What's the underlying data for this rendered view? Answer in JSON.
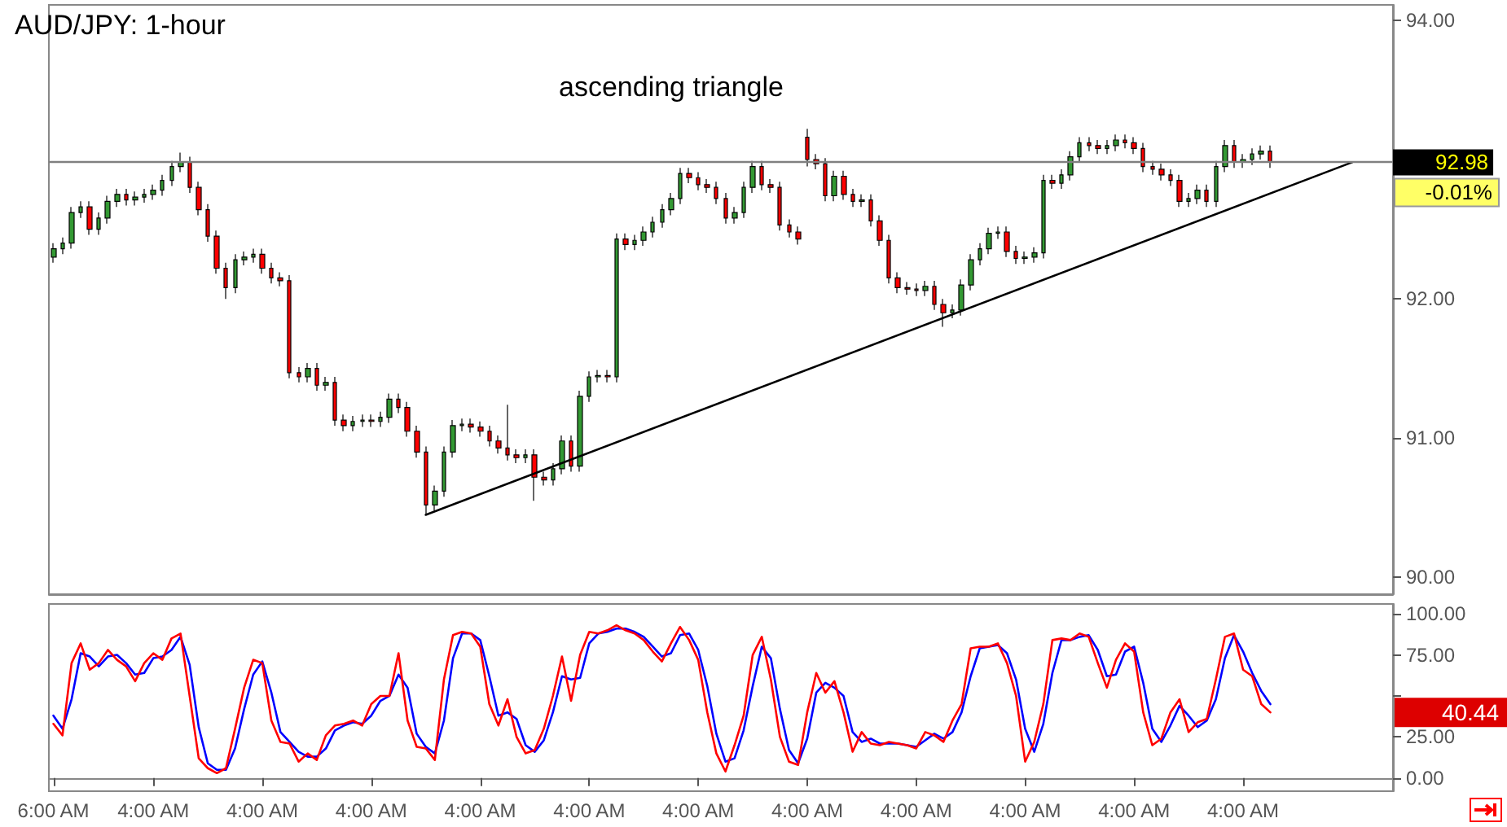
{
  "chart_data": [
    {
      "type": "candlestick",
      "title": "AUD/JPY: 1-hour",
      "categories": [
        null,
        null,
        null,
        null,
        null,
        null,
        null,
        null,
        null,
        null,
        null,
        null,
        null,
        null,
        null,
        null,
        null,
        null,
        null,
        null,
        null,
        null,
        null,
        null,
        null,
        null,
        null,
        null,
        null,
        null,
        null,
        null,
        null,
        null,
        null,
        null,
        null,
        null,
        null,
        null,
        null,
        null,
        null,
        null,
        null,
        null,
        null,
        null,
        null,
        null,
        null,
        null,
        null,
        null,
        null,
        null,
        null,
        null,
        null,
        null,
        null,
        null,
        null,
        null,
        null,
        null,
        null,
        null,
        null,
        null,
        null,
        null,
        null,
        null,
        null,
        null,
        null,
        null,
        null,
        null,
        null,
        null,
        null,
        null,
        null,
        null,
        null,
        null,
        null,
        null,
        null,
        null,
        null,
        null,
        null,
        null,
        null,
        null,
        null,
        null,
        null,
        null,
        null,
        null,
        null,
        null,
        null,
        null,
        null,
        null,
        null,
        null,
        null,
        null,
        null,
        null,
        null,
        null,
        null,
        null,
        null,
        null,
        null,
        null,
        null,
        null,
        null,
        null,
        null,
        null,
        null,
        null,
        null,
        null,
        null,
        null,
        null,
        null,
        null,
        null,
        null,
        null,
        null,
        null,
        null,
        null,
        null,
        null
      ],
      "ohlc": [
        [
          92.3,
          92.4,
          92.26,
          92.36
        ],
        [
          92.36,
          92.44,
          92.32,
          92.4
        ],
        [
          92.4,
          92.66,
          92.36,
          92.62
        ],
        [
          92.62,
          92.7,
          92.58,
          92.66
        ],
        [
          92.66,
          92.7,
          92.46,
          92.5
        ],
        [
          92.5,
          92.62,
          92.46,
          92.58
        ],
        [
          92.58,
          92.74,
          92.54,
          92.7
        ],
        [
          92.7,
          92.79,
          92.66,
          92.75
        ],
        [
          92.75,
          92.79,
          92.67,
          92.71
        ],
        [
          92.71,
          92.77,
          92.67,
          92.73
        ],
        [
          92.73,
          92.79,
          92.69,
          92.75
        ],
        [
          92.75,
          92.82,
          92.71,
          92.78
        ],
        [
          92.78,
          92.89,
          92.74,
          92.85
        ],
        [
          92.85,
          92.99,
          92.81,
          92.95
        ],
        [
          92.95,
          93.05,
          92.91,
          92.98
        ],
        [
          92.98,
          93.02,
          92.76,
          92.8
        ],
        [
          92.8,
          92.84,
          92.6,
          92.64
        ],
        [
          92.64,
          92.68,
          92.41,
          92.45
        ],
        [
          92.45,
          92.49,
          92.18,
          92.22
        ],
        [
          92.22,
          92.26,
          92.0,
          92.08
        ],
        [
          92.08,
          92.32,
          92.04,
          92.28
        ],
        [
          92.28,
          92.34,
          92.24,
          92.3
        ],
        [
          92.3,
          92.36,
          92.26,
          92.32
        ],
        [
          92.32,
          92.36,
          92.18,
          92.22
        ],
        [
          92.22,
          92.26,
          92.11,
          92.15
        ],
        [
          92.15,
          92.19,
          92.09,
          92.13
        ],
        [
          92.13,
          92.17,
          91.43,
          91.47
        ],
        [
          91.47,
          91.51,
          91.4,
          91.44
        ],
        [
          91.44,
          91.54,
          91.4,
          91.5
        ],
        [
          91.5,
          91.54,
          91.34,
          91.38
        ],
        [
          91.38,
          91.44,
          91.34,
          91.4
        ],
        [
          91.4,
          91.44,
          91.09,
          91.13
        ],
        [
          91.13,
          91.17,
          91.05,
          91.09
        ],
        [
          91.09,
          91.16,
          91.05,
          91.12
        ],
        [
          91.12,
          91.17,
          91.08,
          91.13
        ],
        [
          91.13,
          91.17,
          91.08,
          91.12
        ],
        [
          91.12,
          91.19,
          91.08,
          91.15
        ],
        [
          91.15,
          91.32,
          91.11,
          91.28
        ],
        [
          91.28,
          91.32,
          91.18,
          91.22
        ],
        [
          91.22,
          91.26,
          91.01,
          91.05
        ],
        [
          91.05,
          91.09,
          90.86,
          90.9
        ],
        [
          90.9,
          90.94,
          90.45,
          90.52
        ],
        [
          90.52,
          90.66,
          90.48,
          90.62
        ],
        [
          90.62,
          90.94,
          90.58,
          90.9
        ],
        [
          90.9,
          91.13,
          90.86,
          91.09
        ],
        [
          91.09,
          91.14,
          91.05,
          91.1
        ],
        [
          91.1,
          91.14,
          91.04,
          91.08
        ],
        [
          91.08,
          91.12,
          91.01,
          91.05
        ],
        [
          91.05,
          91.09,
          90.94,
          90.98
        ],
        [
          90.98,
          91.02,
          90.89,
          90.93
        ],
        [
          90.93,
          91.24,
          90.84,
          90.88
        ],
        [
          90.88,
          90.92,
          90.82,
          90.86
        ],
        [
          90.86,
          90.92,
          90.82,
          90.88
        ],
        [
          90.88,
          90.92,
          90.55,
          90.72
        ],
        [
          90.72,
          90.76,
          90.66,
          90.7
        ],
        [
          90.7,
          90.82,
          90.66,
          90.78
        ],
        [
          90.78,
          91.02,
          90.74,
          90.98
        ],
        [
          90.98,
          91.02,
          90.76,
          90.8
        ],
        [
          90.8,
          91.34,
          90.76,
          91.3
        ],
        [
          91.3,
          91.48,
          91.26,
          91.44
        ],
        [
          91.44,
          91.49,
          91.4,
          91.45
        ],
        [
          91.45,
          91.49,
          91.4,
          91.44
        ],
        [
          91.44,
          92.47,
          91.4,
          92.43
        ],
        [
          92.43,
          92.47,
          92.35,
          92.39
        ],
        [
          92.39,
          92.46,
          92.35,
          92.42
        ],
        [
          92.42,
          92.52,
          92.38,
          92.48
        ],
        [
          92.48,
          92.59,
          92.44,
          92.55
        ],
        [
          92.55,
          92.68,
          92.51,
          92.64
        ],
        [
          92.64,
          92.76,
          92.6,
          92.72
        ],
        [
          92.72,
          92.94,
          92.68,
          92.9
        ],
        [
          92.9,
          92.94,
          92.83,
          92.87
        ],
        [
          92.87,
          92.91,
          92.78,
          92.82
        ],
        [
          92.82,
          92.86,
          92.76,
          92.8
        ],
        [
          92.8,
          92.84,
          92.68,
          92.72
        ],
        [
          92.72,
          92.76,
          92.54,
          92.58
        ],
        [
          92.58,
          92.66,
          92.54,
          92.62
        ],
        [
          92.62,
          92.84,
          92.58,
          92.8
        ],
        [
          92.8,
          92.99,
          92.76,
          92.95
        ],
        [
          92.95,
          92.99,
          92.78,
          92.82
        ],
        [
          92.82,
          92.86,
          92.76,
          92.8
        ],
        [
          92.8,
          92.84,
          92.49,
          92.53
        ],
        [
          92.53,
          92.57,
          92.44,
          92.48
        ],
        [
          92.48,
          92.52,
          92.39,
          92.43
        ],
        [
          93.16,
          93.22,
          92.95,
          93.0
        ],
        [
          93.0,
          93.04,
          92.93,
          92.97
        ],
        [
          92.97,
          93.01,
          92.7,
          92.74
        ],
        [
          92.74,
          92.92,
          92.7,
          92.88
        ],
        [
          92.88,
          92.92,
          92.71,
          92.75
        ],
        [
          92.75,
          92.79,
          92.66,
          92.7
        ],
        [
          92.7,
          92.75,
          92.66,
          92.71
        ],
        [
          92.71,
          92.75,
          92.52,
          92.56
        ],
        [
          92.56,
          92.6,
          92.38,
          92.42
        ],
        [
          92.42,
          92.46,
          92.11,
          92.15
        ],
        [
          92.15,
          92.19,
          92.04,
          92.08
        ],
        [
          92.08,
          92.12,
          92.03,
          92.07
        ],
        [
          92.07,
          92.11,
          92.02,
          92.06
        ],
        [
          92.06,
          92.13,
          92.02,
          92.09
        ],
        [
          92.09,
          92.13,
          91.92,
          91.96
        ],
        [
          91.96,
          92.0,
          91.8,
          91.9
        ],
        [
          91.9,
          91.96,
          91.86,
          91.92
        ],
        [
          91.92,
          92.14,
          91.88,
          92.1
        ],
        [
          92.1,
          92.32,
          92.06,
          92.28
        ],
        [
          92.28,
          92.4,
          92.24,
          92.36
        ],
        [
          92.36,
          92.51,
          92.32,
          92.47
        ],
        [
          92.47,
          92.52,
          92.43,
          92.48
        ],
        [
          92.48,
          92.52,
          92.3,
          92.34
        ],
        [
          92.34,
          92.38,
          92.25,
          92.29
        ],
        [
          92.29,
          92.34,
          92.25,
          92.3
        ],
        [
          92.3,
          92.37,
          92.26,
          92.33
        ],
        [
          92.33,
          92.89,
          92.29,
          92.85
        ],
        [
          92.85,
          92.89,
          92.79,
          92.83
        ],
        [
          92.83,
          92.93,
          92.79,
          92.89
        ],
        [
          92.89,
          93.06,
          92.85,
          93.02
        ],
        [
          93.02,
          93.16,
          92.98,
          93.12
        ],
        [
          93.12,
          93.16,
          93.06,
          93.1
        ],
        [
          93.1,
          93.14,
          93.04,
          93.08
        ],
        [
          93.08,
          93.14,
          93.04,
          93.1
        ],
        [
          93.1,
          93.18,
          93.06,
          93.14
        ],
        [
          93.14,
          93.18,
          93.08,
          93.12
        ],
        [
          93.12,
          93.16,
          93.04,
          93.08
        ],
        [
          93.08,
          93.12,
          92.91,
          92.95
        ],
        [
          92.95,
          92.99,
          92.89,
          92.93
        ],
        [
          92.93,
          92.97,
          92.85,
          92.89
        ],
        [
          92.89,
          92.93,
          92.81,
          92.85
        ],
        [
          92.85,
          92.89,
          92.66,
          92.7
        ],
        [
          92.7,
          92.76,
          92.66,
          92.72
        ],
        [
          92.72,
          92.82,
          92.68,
          92.78
        ],
        [
          92.78,
          92.82,
          92.66,
          92.7
        ],
        [
          92.7,
          92.99,
          92.66,
          92.95
        ],
        [
          92.95,
          93.14,
          92.91,
          93.1
        ],
        [
          93.1,
          93.14,
          92.94,
          92.98
        ],
        [
          92.98,
          93.04,
          92.94,
          93.0
        ],
        [
          93.0,
          93.08,
          92.96,
          93.04
        ],
        [
          93.04,
          93.1,
          93.0,
          93.06
        ],
        [
          93.06,
          93.1,
          92.94,
          92.98
        ],
        null,
        null,
        null,
        null,
        null,
        null,
        null,
        null,
        null,
        null,
        null,
        null,
        null
      ],
      "series": [
        {
          "type": "line",
          "color": "#000000",
          "values": [
            null,
            null,
            null,
            null,
            null,
            null,
            null,
            null,
            null,
            null,
            null,
            null,
            null,
            null,
            null,
            null,
            null,
            null,
            null,
            null,
            null,
            null,
            null,
            null,
            null,
            null,
            null,
            null,
            null,
            null,
            null,
            null,
            null,
            null,
            null,
            null,
            null,
            null,
            null,
            null,
            null,
            90.45,
            null,
            null,
            null,
            null,
            null,
            null,
            null,
            null,
            null,
            null,
            null,
            null,
            null,
            null,
            null,
            null,
            null,
            null,
            null,
            null,
            null,
            null,
            null,
            null,
            null,
            null,
            null,
            null,
            null,
            null,
            null,
            null,
            null,
            null,
            null,
            null,
            null,
            null,
            null,
            null,
            null,
            null,
            null,
            null,
            null,
            null,
            null,
            null,
            null,
            null,
            null,
            null,
            null,
            null,
            null,
            null,
            null,
            null,
            null,
            null,
            null,
            null,
            null,
            null,
            null,
            null,
            null,
            null,
            null,
            null,
            null,
            null,
            null,
            null,
            null,
            null,
            null,
            null,
            null,
            null,
            null,
            null,
            null,
            null,
            null,
            null,
            null,
            null,
            null,
            null,
            null,
            null,
            null,
            null,
            null,
            null,
            null,
            null,
            null,
            null,
            null,
            92.98,
            null,
            null,
            null,
            null
          ]
        }
      ],
      "ylim": [
        89.88,
        94.11
      ],
      "yticks": [
        {
          "value": 90,
          "label": "90.00"
        },
        {
          "value": 91,
          "label": "91.00"
        },
        {
          "value": 92,
          "label": "92.00"
        },
        {
          "value": 93,
          "label": null
        },
        {
          "value": 94,
          "label": "94.00"
        }
      ],
      "tick_labels": "y",
      "ref_lines": [
        {
          "axis": "y",
          "value": 92.98,
          "label": "92.98",
          "color": "#808080"
        }
      ],
      "annotations": [
        "ascending triangle",
        "-0.01%"
      ]
    },
    {
      "type": "line",
      "categories": [
        "6:00 AM",
        null,
        null,
        null,
        null,
        null,
        null,
        null,
        null,
        null,
        null,
        "4:00 AM",
        null,
        null,
        null,
        null,
        null,
        null,
        null,
        null,
        null,
        null,
        null,
        "4:00 AM",
        null,
        null,
        null,
        null,
        null,
        null,
        null,
        null,
        null,
        null,
        null,
        "4:00 AM",
        null,
        null,
        null,
        null,
        null,
        null,
        null,
        null,
        null,
        null,
        null,
        "4:00 AM",
        null,
        null,
        null,
        null,
        null,
        null,
        null,
        null,
        null,
        null,
        null,
        "4:00 AM",
        null,
        null,
        null,
        null,
        null,
        null,
        null,
        null,
        null,
        null,
        null,
        "4:00 AM",
        null,
        null,
        null,
        null,
        null,
        null,
        null,
        null,
        null,
        null,
        null,
        "4:00 AM",
        null,
        null,
        null,
        null,
        null,
        null,
        null,
        null,
        null,
        null,
        null,
        "4:00 AM",
        null,
        null,
        null,
        null,
        null,
        null,
        null,
        null,
        null,
        null,
        null,
        "4:00 AM",
        null,
        null,
        null,
        null,
        null,
        null,
        null,
        null,
        null,
        null,
        null,
        "4:00 AM",
        null,
        null,
        null,
        null,
        null,
        null,
        null,
        null,
        null,
        null,
        null,
        "4:00 AM",
        null,
        null,
        null,
        null,
        null,
        null,
        null,
        null,
        null,
        null,
        null,
        null,
        null,
        null,
        null,
        null
      ],
      "series": [
        {
          "color": "#0000ff",
          "values": [
            38,
            30,
            48,
            76,
            74,
            68,
            74,
            75,
            70,
            63,
            64,
            73,
            74,
            78,
            86,
            69,
            31,
            9,
            5,
            5,
            18,
            42,
            63,
            71,
            52,
            28,
            22,
            16,
            13,
            13,
            18,
            29,
            32,
            34,
            33,
            38,
            47,
            50,
            63,
            55,
            27,
            19,
            15,
            35,
            73,
            88,
            88,
            84,
            62,
            38,
            40,
            36,
            20,
            16,
            23,
            40,
            62,
            60,
            61,
            82,
            88,
            89,
            91,
            91,
            89,
            86,
            80,
            74,
            76,
            87,
            88,
            78,
            56,
            27,
            10,
            12,
            29,
            56,
            80,
            73,
            42,
            17,
            9,
            24,
            52,
            58,
            55,
            50,
            28,
            22,
            24,
            21,
            21,
            21,
            20,
            19,
            23,
            27,
            24,
            28,
            40,
            62,
            79,
            80,
            81,
            76,
            60,
            30,
            16,
            33,
            64,
            84,
            84,
            86,
            87,
            78,
            62,
            63,
            77,
            80,
            58,
            30,
            22,
            32,
            44,
            38,
            31,
            35,
            48,
            73,
            87,
            77,
            64,
            53,
            45,
            null,
            null,
            null,
            null,
            null,
            null,
            null,
            null,
            null,
            null,
            null,
            null,
            null
          ]
        },
        {
          "color": "#ff0000",
          "values": [
            33,
            26,
            70,
            82,
            66,
            70,
            78,
            72,
            68,
            59,
            70,
            76,
            72,
            85,
            88,
            50,
            12,
            6,
            3,
            6,
            30,
            55,
            72,
            70,
            35,
            22,
            21,
            10,
            15,
            11,
            26,
            32,
            33,
            35,
            32,
            45,
            50,
            50,
            76,
            35,
            19,
            18,
            11,
            60,
            87,
            89,
            88,
            80,
            45,
            32,
            48,
            25,
            15,
            17,
            30,
            50,
            74,
            47,
            75,
            89,
            88,
            90,
            93,
            90,
            88,
            84,
            77,
            71,
            82,
            92,
            84,
            72,
            40,
            15,
            4,
            20,
            38,
            75,
            86,
            60,
            25,
            10,
            8,
            40,
            64,
            52,
            59,
            40,
            16,
            28,
            21,
            20,
            22,
            21,
            20,
            18,
            28,
            26,
            22,
            35,
            45,
            79,
            80,
            80,
            82,
            70,
            50,
            10,
            22,
            45,
            84,
            85,
            84,
            88,
            86,
            70,
            55,
            72,
            82,
            77,
            40,
            20,
            24,
            40,
            48,
            28,
            34,
            36,
            60,
            86,
            88,
            66,
            62,
            45,
            40,
            null,
            null,
            null,
            null,
            null,
            null,
            null,
            null,
            null,
            null,
            null,
            null,
            null
          ]
        }
      ],
      "ylim": [
        -8,
        106
      ],
      "yticks": [
        {
          "value": 0,
          "label": "0.00"
        },
        {
          "value": 25,
          "label": "25.00"
        },
        {
          "value": 50,
          "label": null
        },
        {
          "value": 75,
          "label": "75.00"
        },
        {
          "value": 100,
          "label": "100.00"
        }
      ],
      "marker": "none",
      "annotations": [
        "40.44"
      ]
    }
  ]
}
